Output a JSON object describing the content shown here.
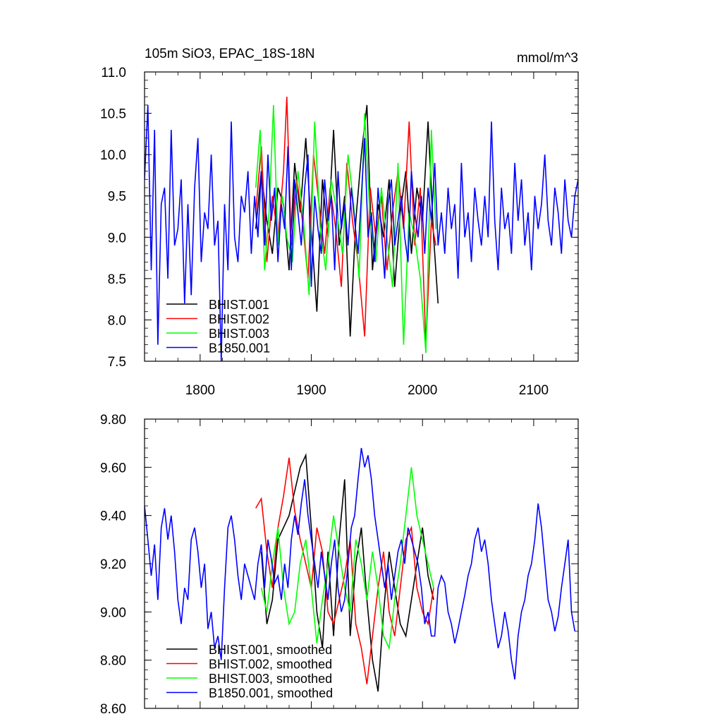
{
  "chart_data": [
    {
      "type": "line",
      "title": "105m SiO3, EPAC_18S-18N",
      "units": "mmol/m^3",
      "xlim": [
        1750,
        2140
      ],
      "ylim": [
        7.5,
        11.0
      ],
      "x_ticks": [
        1800,
        1900,
        2000,
        2100
      ],
      "x_tick_labels": [
        "1800",
        "1900",
        "2000",
        "2100"
      ],
      "y_ticks": [
        7.5,
        8.0,
        8.5,
        9.0,
        9.5,
        10.0,
        10.5,
        11.0
      ],
      "y_tick_labels": [
        "7.5",
        "8.0",
        "8.5",
        "9.0",
        "9.5",
        "10.0",
        "10.5",
        "11.0"
      ],
      "grid": false,
      "legend_position": "bottom-left",
      "series": [
        {
          "name": "BHIST.001",
          "color": "#000000",
          "x": [
            1850,
            1855,
            1860,
            1865,
            1870,
            1875,
            1880,
            1885,
            1890,
            1895,
            1900,
            1905,
            1910,
            1915,
            1920,
            1925,
            1930,
            1935,
            1940,
            1945,
            1950,
            1955,
            1960,
            1965,
            1970,
            1975,
            1980,
            1985,
            1990,
            1995,
            2000,
            2005,
            2010,
            2014
          ],
          "values": [
            9.1,
            9.8,
            9.2,
            8.8,
            9.6,
            9.4,
            8.6,
            9.9,
            9.3,
            10.2,
            9.1,
            8.1,
            9.7,
            9.0,
            10.3,
            8.9,
            9.5,
            7.8,
            9.2,
            10.0,
            10.6,
            8.6,
            9.4,
            9.0,
            9.7,
            8.4,
            9.3,
            9.8,
            8.8,
            9.6,
            9.2,
            10.4,
            9.0,
            8.2
          ]
        },
        {
          "name": "BHIST.002",
          "color": "#ff0000",
          "x": [
            1850,
            1855,
            1860,
            1865,
            1870,
            1875,
            1878,
            1882,
            1887,
            1892,
            1897,
            1902,
            1907,
            1912,
            1917,
            1922,
            1927,
            1932,
            1937,
            1942,
            1948,
            1953,
            1958,
            1963,
            1968,
            1973,
            1978,
            1983,
            1988,
            1993,
            1998,
            2003,
            2008,
            2012
          ],
          "values": [
            9.3,
            10.1,
            8.7,
            9.5,
            9.0,
            9.8,
            10.7,
            8.9,
            9.7,
            9.2,
            8.5,
            10.0,
            9.4,
            8.8,
            9.6,
            9.1,
            8.4,
            9.9,
            9.2,
            8.7,
            7.8,
            9.6,
            9.0,
            9.5,
            8.6,
            9.3,
            9.8,
            9.1,
            10.4,
            8.9,
            9.6,
            7.7,
            9.2,
            8.9
          ]
        },
        {
          "name": "BHIST.003",
          "color": "#00ff00",
          "x": [
            1850,
            1854,
            1858,
            1862,
            1866,
            1870,
            1874,
            1878,
            1883,
            1888,
            1893,
            1898,
            1903,
            1908,
            1913,
            1918,
            1923,
            1928,
            1933,
            1938,
            1943,
            1948,
            1953,
            1958,
            1963,
            1968,
            1973,
            1978,
            1983,
            1988,
            1993,
            1998,
            2003,
            2008,
            2012
          ],
          "values": [
            9.6,
            10.3,
            8.6,
            9.3,
            10.6,
            8.9,
            9.5,
            9.0,
            8.7,
            9.8,
            9.2,
            8.3,
            10.4,
            9.1,
            8.6,
            9.7,
            9.3,
            8.8,
            10.0,
            9.4,
            8.5,
            10.5,
            9.2,
            8.7,
            9.6,
            9.0,
            8.4,
            9.9,
            7.7,
            9.3,
            9.0,
            8.5,
            7.6,
            10.3,
            9.1
          ]
        },
        {
          "name": "B1850.001",
          "color": "#0000ff",
          "x": [
            1750,
            1753,
            1756,
            1759,
            1762,
            1765,
            1768,
            1771,
            1774,
            1777,
            1780,
            1783,
            1786,
            1789,
            1792,
            1795,
            1798,
            1801,
            1804,
            1807,
            1810,
            1813,
            1816,
            1819,
            1822,
            1825,
            1828,
            1831,
            1834,
            1837,
            1840,
            1843,
            1846,
            1849,
            1852,
            1855,
            1858,
            1861,
            1864,
            1867,
            1870,
            1873,
            1876,
            1879,
            1882,
            1885,
            1888,
            1891,
            1894,
            1897,
            1900,
            1903,
            1906,
            1909,
            1912,
            1915,
            1918,
            1921,
            1924,
            1927,
            1930,
            1933,
            1936,
            1939,
            1942,
            1945,
            1948,
            1951,
            1954,
            1957,
            1960,
            1963,
            1966,
            1969,
            1972,
            1975,
            1978,
            1981,
            1984,
            1987,
            1990,
            1993,
            1996,
            1999,
            2002,
            2005,
            2008,
            2011,
            2014,
            2017,
            2020,
            2023,
            2026,
            2029,
            2032,
            2035,
            2038,
            2041,
            2044,
            2047,
            2050,
            2053,
            2056,
            2059,
            2062,
            2065,
            2068,
            2071,
            2074,
            2077,
            2080,
            2083,
            2086,
            2089,
            2092,
            2095,
            2098,
            2101,
            2104,
            2107,
            2110,
            2113,
            2116,
            2119,
            2122,
            2125,
            2128,
            2131,
            2134,
            2137,
            2140
          ],
          "values": [
            9.7,
            10.6,
            8.6,
            10.3,
            7.7,
            9.4,
            9.6,
            8.5,
            10.3,
            8.9,
            9.1,
            9.7,
            8.2,
            9.4,
            8.3,
            9.6,
            10.2,
            8.7,
            9.3,
            9.1,
            10.0,
            8.9,
            9.2,
            7.5,
            9.4,
            8.6,
            10.4,
            9.0,
            8.7,
            9.5,
            9.3,
            9.8,
            8.8,
            9.5,
            9.0,
            9.8,
            8.9,
            10.0,
            9.2,
            9.6,
            8.7,
            9.4,
            9.1,
            10.1,
            8.6,
            9.7,
            9.3,
            8.9,
            9.6,
            10.0,
            8.4,
            9.5,
            9.1,
            8.8,
            9.7,
            9.2,
            9.5,
            8.6,
            9.8,
            9.1,
            9.4,
            8.9,
            9.6,
            9.2,
            8.8,
            9.5,
            10.2,
            9.0,
            9.3,
            8.7,
            9.6,
            9.1,
            8.5,
            9.4,
            9.7,
            8.9,
            9.2,
            9.5,
            9.0,
            8.7,
            9.8,
            9.3,
            9.0,
            9.5,
            8.8,
            9.6,
            9.2,
            9.9,
            8.9,
            9.3,
            8.8,
            9.6,
            9.1,
            9.4,
            8.5,
            9.9,
            9.0,
            9.3,
            8.7,
            9.6,
            9.2,
            8.9,
            9.5,
            9.0,
            10.4,
            9.2,
            8.6,
            9.6,
            9.1,
            9.3,
            8.8,
            9.9,
            9.2,
            9.7,
            8.9,
            9.3,
            8.6,
            9.5,
            9.1,
            9.4,
            10.0,
            9.2,
            8.9,
            9.6,
            9.3,
            8.8,
            9.7,
            9.2,
            9.0,
            9.5,
            9.7
          ]
        }
      ],
      "legend": [
        "BHIST.001",
        "BHIST.002",
        "BHIST.003",
        "B1850.001"
      ]
    },
    {
      "type": "line",
      "title": "",
      "xlim": [
        1750,
        2140
      ],
      "ylim": [
        8.6,
        9.8
      ],
      "y_ticks": [
        8.6,
        8.8,
        9.0,
        9.2,
        9.4,
        9.6,
        9.8
      ],
      "y_tick_labels": [
        "8.60",
        "8.80",
        "9.00",
        "9.20",
        "9.40",
        "9.60",
        "9.80"
      ],
      "grid": false,
      "legend_position": "bottom-left",
      "series": [
        {
          "name": "BHIST.001, smoothed",
          "color": "#000000",
          "x": [
            1855,
            1860,
            1865,
            1870,
            1875,
            1880,
            1885,
            1890,
            1895,
            1900,
            1905,
            1910,
            1915,
            1920,
            1925,
            1930,
            1935,
            1940,
            1945,
            1950,
            1955,
            1960,
            1965,
            1970,
            1975,
            1980,
            1985,
            1990,
            1995,
            2000,
            2005,
            2010
          ],
          "values": [
            9.25,
            8.95,
            9.05,
            9.3,
            9.35,
            9.4,
            9.5,
            9.6,
            9.65,
            9.35,
            9.0,
            8.85,
            9.25,
            8.9,
            9.3,
            9.55,
            8.9,
            9.2,
            9.35,
            9.05,
            8.8,
            8.67,
            9.0,
            9.25,
            9.1,
            8.95,
            8.9,
            9.05,
            9.2,
            9.35,
            9.15,
            9.05
          ]
        },
        {
          "name": "BHIST.002, smoothed",
          "color": "#ff0000",
          "x": [
            1850,
            1855,
            1860,
            1865,
            1870,
            1875,
            1880,
            1885,
            1890,
            1895,
            1900,
            1905,
            1910,
            1915,
            1920,
            1925,
            1930,
            1935,
            1940,
            1945,
            1950,
            1955,
            1960,
            1965,
            1970,
            1975,
            1980,
            1985,
            1990,
            1995,
            2000,
            2005,
            2010
          ],
          "values": [
            9.43,
            9.47,
            9.25,
            9.1,
            9.35,
            9.48,
            9.64,
            9.42,
            9.3,
            9.2,
            9.1,
            9.35,
            9.25,
            9.0,
            8.95,
            9.05,
            9.15,
            9.3,
            8.95,
            8.85,
            8.7,
            8.9,
            9.1,
            9.25,
            9.0,
            8.9,
            9.1,
            9.3,
            9.35,
            9.1,
            9.0,
            8.95,
            9.1
          ]
        },
        {
          "name": "BHIST.003, smoothed",
          "color": "#00ff00",
          "x": [
            1855,
            1860,
            1865,
            1870,
            1875,
            1880,
            1885,
            1890,
            1895,
            1900,
            1905,
            1910,
            1915,
            1920,
            1925,
            1930,
            1935,
            1940,
            1945,
            1950,
            1955,
            1960,
            1965,
            1970,
            1975,
            1980,
            1985,
            1990,
            1995,
            2000,
            2005,
            2010
          ],
          "values": [
            9.1,
            9.0,
            9.2,
            9.35,
            9.1,
            8.95,
            9.0,
            9.2,
            9.3,
            9.1,
            8.87,
            9.05,
            9.2,
            9.4,
            9.25,
            9.1,
            9.0,
            9.3,
            9.2,
            9.05,
            9.25,
            9.1,
            8.9,
            8.85,
            9.05,
            9.2,
            9.4,
            9.6,
            9.4,
            9.3,
            9.2,
            9.1
          ]
        },
        {
          "name": "B1850.001, smoothed",
          "color": "#0000ff",
          "x": [
            1750,
            1753,
            1756,
            1759,
            1762,
            1765,
            1768,
            1771,
            1774,
            1777,
            1780,
            1783,
            1786,
            1789,
            1792,
            1795,
            1798,
            1801,
            1804,
            1807,
            1810,
            1813,
            1816,
            1819,
            1822,
            1825,
            1828,
            1831,
            1834,
            1837,
            1840,
            1843,
            1846,
            1849,
            1852,
            1855,
            1858,
            1861,
            1864,
            1867,
            1870,
            1873,
            1876,
            1879,
            1882,
            1885,
            1888,
            1891,
            1894,
            1897,
            1900,
            1903,
            1906,
            1909,
            1912,
            1915,
            1918,
            1921,
            1924,
            1927,
            1930,
            1933,
            1936,
            1939,
            1942,
            1945,
            1948,
            1951,
            1954,
            1957,
            1960,
            1963,
            1966,
            1969,
            1972,
            1975,
            1978,
            1981,
            1984,
            1987,
            1990,
            1993,
            1996,
            1999,
            2002,
            2005,
            2008,
            2011,
            2014,
            2017,
            2020,
            2023,
            2026,
            2029,
            2032,
            2035,
            2038,
            2041,
            2044,
            2047,
            2050,
            2053,
            2056,
            2059,
            2062,
            2065,
            2068,
            2071,
            2074,
            2077,
            2080,
            2083,
            2086,
            2089,
            2092,
            2095,
            2098,
            2101,
            2104,
            2107,
            2110,
            2113,
            2116,
            2119,
            2122,
            2125,
            2128,
            2131,
            2134,
            2137
          ],
          "values": [
            9.44,
            9.3,
            9.15,
            9.28,
            9.05,
            9.35,
            9.43,
            9.3,
            9.4,
            9.25,
            9.05,
            8.95,
            9.1,
            9.05,
            9.3,
            9.35,
            9.25,
            9.1,
            9.2,
            8.93,
            9.0,
            8.85,
            8.9,
            8.8,
            9.1,
            9.35,
            9.4,
            9.3,
            9.15,
            9.05,
            9.2,
            9.15,
            9.1,
            9.05,
            9.2,
            9.28,
            9.1,
            9.3,
            9.22,
            9.12,
            9.15,
            9.05,
            9.2,
            9.1,
            9.3,
            9.4,
            9.32,
            9.45,
            9.55,
            9.4,
            9.3,
            9.2,
            9.1,
            9.25,
            9.15,
            9.05,
            9.2,
            9.3,
            9.1,
            9.0,
            9.05,
            9.2,
            9.35,
            9.4,
            9.55,
            9.68,
            9.6,
            9.65,
            9.55,
            9.4,
            9.3,
            9.2,
            9.1,
            9.2,
            9.05,
            9.15,
            9.25,
            9.3,
            9.2,
            9.35,
            9.3,
            9.25,
            9.2,
            9.1,
            8.95,
            9.0,
            8.9,
            8.9,
            9.1,
            9.15,
            9.12,
            9.0,
            8.95,
            8.87,
            8.93,
            9.0,
            9.07,
            9.15,
            9.2,
            9.3,
            9.35,
            9.25,
            9.3,
            9.2,
            9.05,
            8.95,
            8.85,
            8.9,
            9.0,
            8.92,
            8.8,
            8.72,
            8.9,
            9.0,
            9.05,
            9.15,
            9.2,
            9.3,
            9.45,
            9.35,
            9.2,
            9.05,
            9.0,
            8.92,
            8.98,
            9.1,
            9.2,
            9.3,
            9.0,
            8.92
          ]
        }
      ],
      "legend": [
        "BHIST.001, smoothed",
        "BHIST.002, smoothed",
        "BHIST.003, smoothed",
        "B1850.001, smoothed"
      ]
    }
  ]
}
